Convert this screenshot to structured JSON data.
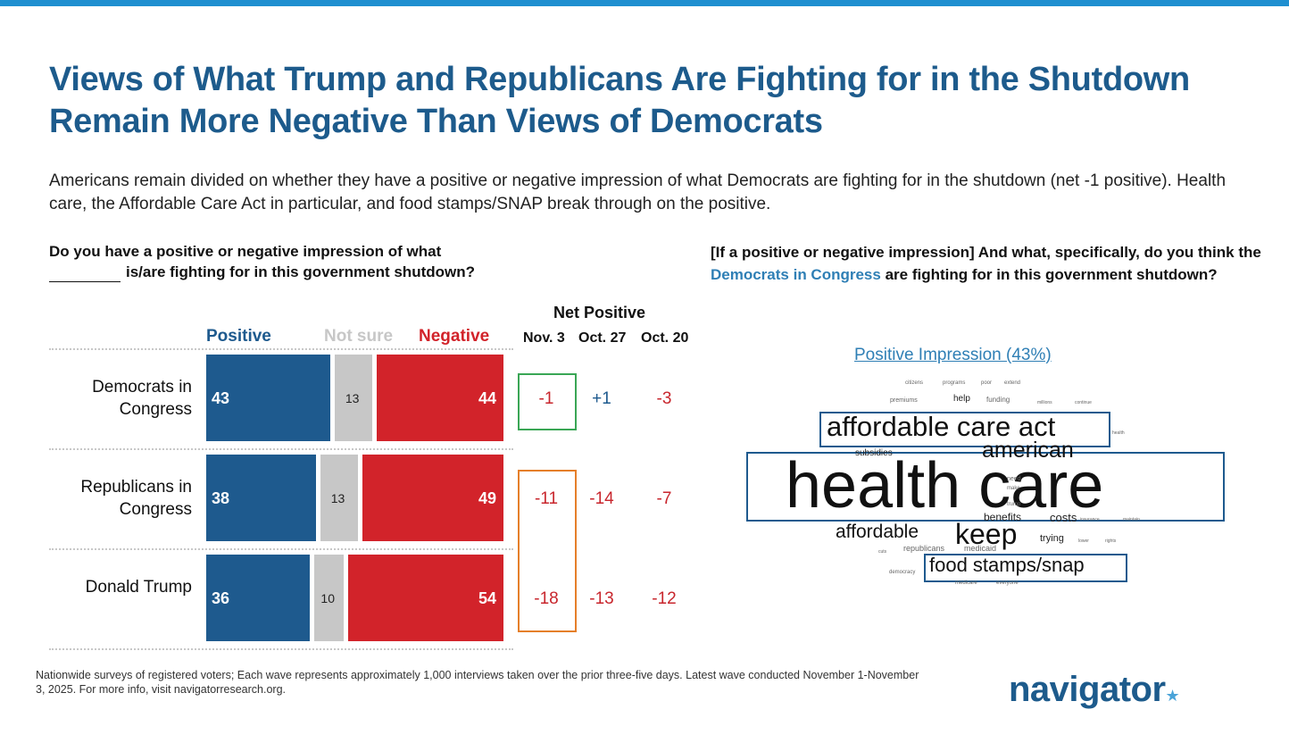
{
  "title": "Views of What Trump and Republicans Are Fighting for in the Shutdown Remain More Negative Than Views of Democrats",
  "subtitle": "Americans remain divided on whether they have a positive or negative impression of what Democrats are fighting for in the shutdown (net -1 positive). Health care, the Affordable Care Act in particular, and food stamps/SNAP break through on the positive.",
  "question_left": {
    "line1": "Do you have a positive or negative impression of what",
    "line2": "is/are fighting for in this government shutdown?"
  },
  "question_right": {
    "part1": "[If a positive or negative impression] And what, specifically, do you think the ",
    "highlight": "Democrats in Congress",
    "part2": " are fighting for in this government shutdown?"
  },
  "colors": {
    "positive": "#1e5a8e",
    "not_sure": "#c7c7c7",
    "negative": "#d2232a",
    "accent": "#1f8fd0"
  },
  "chart_data": {
    "type": "bar",
    "stacked": true,
    "orientation": "horizontal",
    "categories": [
      "Democrats in Congress",
      "Republicans in Congress",
      "Donald Trump"
    ],
    "series": [
      {
        "name": "Positive",
        "values": [
          43,
          38,
          36
        ]
      },
      {
        "name": "Not sure",
        "values": [
          13,
          13,
          10
        ]
      },
      {
        "name": "Negative",
        "values": [
          44,
          49,
          54
        ]
      }
    ],
    "net_positive": {
      "title": "Net Positive",
      "columns": [
        "Nov. 3",
        "Oct. 27",
        "Oct. 20"
      ],
      "rows": [
        [
          "-1",
          "+1",
          "-3"
        ],
        [
          "-11",
          "-14",
          "-7"
        ],
        [
          "-18",
          "-13",
          "-12"
        ]
      ]
    }
  },
  "word_cloud": {
    "title": "Positive Impression (43%)",
    "words": [
      {
        "text": "health care",
        "weight": 10,
        "boxed": true
      },
      {
        "text": "affordable care act",
        "weight": 6,
        "boxed": true
      },
      {
        "text": "american",
        "weight": 5,
        "boxed": false
      },
      {
        "text": "keep",
        "weight": 5,
        "boxed": false
      },
      {
        "text": "affordable",
        "weight": 4,
        "boxed": false
      },
      {
        "text": "food stamps/snap",
        "weight": 4,
        "boxed": true
      },
      {
        "text": "costs",
        "weight": 2,
        "boxed": false
      },
      {
        "text": "benefits",
        "weight": 2,
        "boxed": false
      },
      {
        "text": "trying",
        "weight": 2,
        "boxed": false
      },
      {
        "text": "subsidies",
        "weight": 2,
        "boxed": false
      },
      {
        "text": "republicans",
        "weight": 1,
        "boxed": false
      },
      {
        "text": "medicaid",
        "weight": 1,
        "boxed": false
      },
      {
        "text": "premiums",
        "weight": 1,
        "boxed": false
      },
      {
        "text": "help",
        "weight": 1,
        "boxed": false
      },
      {
        "text": "funding",
        "weight": 1,
        "boxed": false
      },
      {
        "text": "need",
        "weight": 1,
        "boxed": false
      },
      {
        "text": "make",
        "weight": 1,
        "boxed": false
      },
      {
        "text": "trump",
        "weight": 1,
        "boxed": false
      },
      {
        "text": "citizens",
        "weight": 1,
        "boxed": false
      },
      {
        "text": "programs",
        "weight": 1,
        "boxed": false
      },
      {
        "text": "poor",
        "weight": 1,
        "boxed": false
      },
      {
        "text": "extend",
        "weight": 1,
        "boxed": false
      },
      {
        "text": "millions",
        "weight": 1,
        "boxed": false
      },
      {
        "text": "continue",
        "weight": 1,
        "boxed": false
      },
      {
        "text": "insurance",
        "weight": 1,
        "boxed": false
      },
      {
        "text": "maintain",
        "weight": 1,
        "boxed": false
      },
      {
        "text": "lower",
        "weight": 1,
        "boxed": false
      },
      {
        "text": "rights",
        "weight": 1,
        "boxed": false
      },
      {
        "text": "democracy",
        "weight": 1,
        "boxed": false
      },
      {
        "text": "medicare",
        "weight": 1,
        "boxed": false
      },
      {
        "text": "everyone",
        "weight": 1,
        "boxed": false
      },
      {
        "text": "health",
        "weight": 1,
        "boxed": false
      },
      {
        "text": "cuts",
        "weight": 1,
        "boxed": false
      }
    ]
  },
  "footnote": "Nationwide surveys of registered voters; Each wave represents approximately 1,000 interviews taken over the prior three-five days. Latest wave conducted November 1-November 3, 2025. For more info, visit navigatorresearch.org.",
  "logo": {
    "text": "navigator",
    "mark": "★"
  }
}
